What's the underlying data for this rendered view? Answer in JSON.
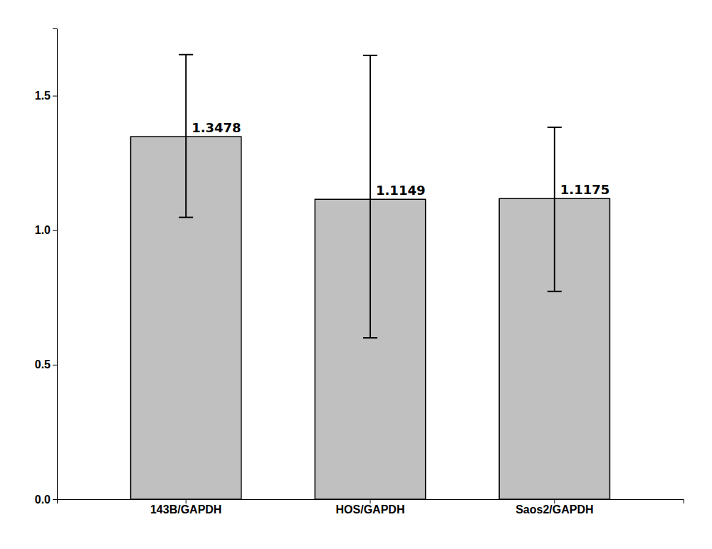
{
  "chart_data": {
    "type": "bar",
    "categories": [
      "143B/GAPDH",
      "HOS/GAPDH",
      "Saos2/GAPDH"
    ],
    "values": [
      1.3478,
      1.1149,
      1.1175
    ],
    "errors_upper": [
      0.305,
      0.535,
      0.265
    ],
    "errors_lower": [
      0.3,
      0.515,
      0.345
    ],
    "color": "#c0c0c0",
    "ylim": [
      0.0,
      1.75
    ],
    "yticks": [
      {
        "value": 0.0,
        "label": "0.0"
      },
      0.5,
      {
        "value": 1.0,
        "label": "1.0"
      },
      1.5
    ],
    "data_labels": true,
    "grid": false
  }
}
